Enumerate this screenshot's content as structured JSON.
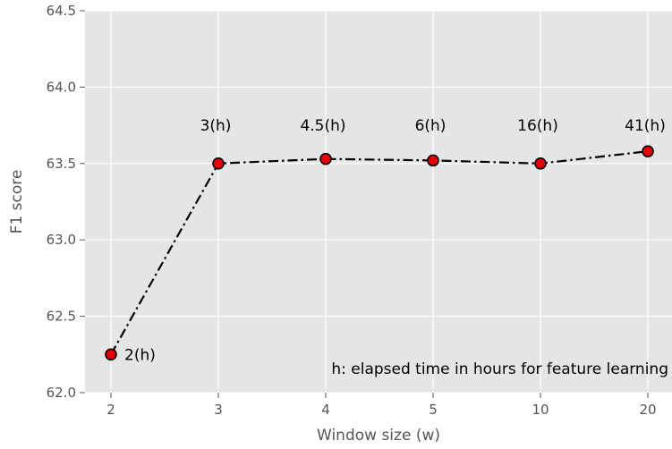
{
  "chart_data": {
    "type": "line",
    "title": "",
    "xlabel": "Window size (w)",
    "ylabel": "F1 score",
    "x": [
      "2",
      "3",
      "4",
      "5",
      "10",
      "20"
    ],
    "y": [
      62.25,
      63.5,
      63.53,
      63.52,
      63.5,
      63.58
    ],
    "point_labels": [
      "2(h)",
      "3(h)",
      "4.5(h)",
      "6(h)",
      "16(h)",
      "41(h)"
    ],
    "yticks": [
      "62.0",
      "62.5",
      "63.0",
      "63.5",
      "64.0",
      "64.5"
    ],
    "ylim": [
      62.0,
      64.5
    ],
    "annotation": "h: elapsed time in hours for feature learning",
    "grid": true,
    "style": {
      "background": "#e5e5e5",
      "grid_color": "#ffffff",
      "line_color": "#000000",
      "line_style": "dash-dot",
      "marker_fill": "#e8000b",
      "marker_edge": "#000000"
    }
  }
}
